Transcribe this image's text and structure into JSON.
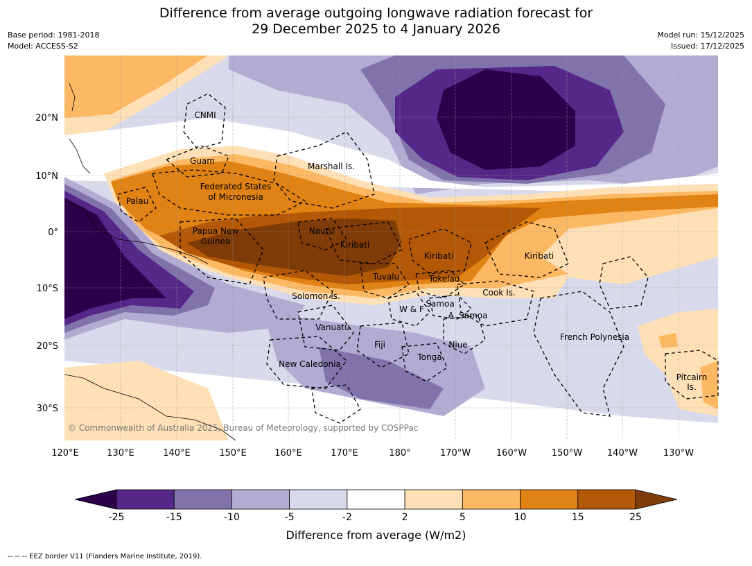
{
  "title_line1": "Difference from average outgoing longwave radiation forecast for",
  "title_line2": "29 December 2025 to 4 January 2026",
  "meta_left": [
    "Base period: 1981-2018",
    "Model: ACCESS-S2"
  ],
  "meta_right": [
    "Model run: 15/12/2025",
    "Issued: 17/12/2025"
  ],
  "copyright": "© Commonwealth of Australia 2025, Bureau of Meteorology, supported by COSPPac",
  "lon_labels": [
    "120°E",
    "130°E",
    "140°E",
    "150°E",
    "160°E",
    "170°E",
    "180°",
    "170°W",
    "160°W",
    "150°W",
    "140°W",
    "130°W"
  ],
  "lat_labels": [
    "20°N",
    "10°N",
    "0°",
    "10°S",
    "20°S",
    "30°S"
  ],
  "place_labels": {
    "cnmi": "CNMI",
    "guam": "Guam",
    "marshall": "Marshall Is.",
    "fsm1": "Federated States",
    "fsm2": "of Micronesia",
    "palau": "Palau",
    "png1": "Papua New",
    "png2": "Guinea",
    "nauru": "Nauru",
    "kiribati1": "Kiribati",
    "kiribati2": "Kiribati",
    "kiribati3": "Kiribati",
    "tuvalu": "Tuvalu",
    "tokelau": "Tokelau",
    "cook": "Cook Is.",
    "solomon": "Solomon Is.",
    "wf": "W & F",
    "samoa": "Samoa",
    "asamoa": "A. Samoa",
    "vanuatu": "Vanuatu",
    "fiji": "Fiji",
    "niue": "Niue",
    "tonga": "Tonga",
    "newcal": "New Caledonia",
    "frpoly": "French Polynesia",
    "pitcairn1": "Pitcairn",
    "pitcairn2": "Is."
  },
  "colorbar": {
    "title": "Difference from average (W/m2)",
    "tick_labels": [
      "-25",
      "-15",
      "-10",
      "-5",
      "-2",
      "2",
      "5",
      "10",
      "15",
      "25"
    ],
    "colors": {
      "lt-25": "#2d004b",
      "-25to-15": "#542788",
      "-15to-10": "#8073ac",
      "-10to-5": "#b2abd2",
      "-5to-2": "#d8daeb",
      "-2to2": "#ffffff",
      "2to5": "#fee0b6",
      "5to10": "#fdb863",
      "10to15": "#e08214",
      "15to25": "#b35806",
      "gt25": "#7f3b08"
    }
  },
  "footnote": "-- -- -- EEZ border V11 (Flanders Marine Institute, 2019)."
}
